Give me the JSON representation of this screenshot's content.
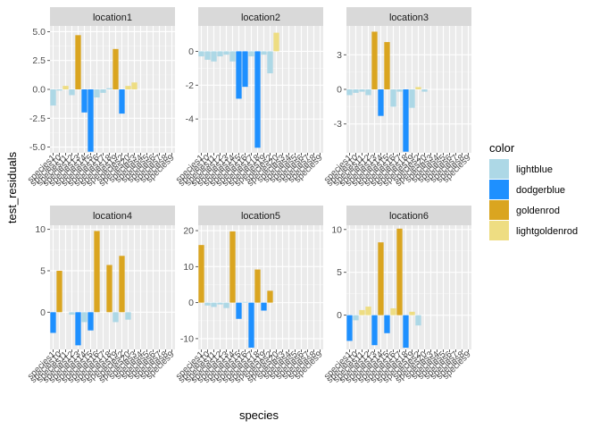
{
  "chart_data": {
    "type": "bar",
    "facet_by": "location",
    "xlabel": "species",
    "ylabel": "test_residuals",
    "categories": [
      "species1",
      "species10",
      "species11",
      "species12",
      "species13",
      "species14",
      "species15",
      "species16",
      "species17",
      "species18",
      "species19",
      "species2",
      "species20",
      "species3",
      "species4",
      "species5",
      "species6",
      "species7",
      "species8",
      "species9"
    ],
    "legend": {
      "title": "color",
      "position": "right",
      "entries": [
        {
          "label": "lightblue",
          "color": "#ADD8E6"
        },
        {
          "label": "dodgerblue",
          "color": "#1E90FF"
        },
        {
          "label": "goldenrod",
          "color": "#DAA520"
        },
        {
          "label": "lightgoldenrod",
          "color": "#EEDD82"
        }
      ]
    },
    "grid": true,
    "panel_background": "#EBEBEB",
    "strip_background": "#D9D9D9",
    "panels": [
      {
        "title": "location1",
        "ylim": [
          -5.5,
          5.5
        ],
        "yticks": [
          -5.0,
          -2.5,
          0.0,
          2.5,
          5.0
        ],
        "ytick_labels": [
          "-5.0",
          "-2.5",
          "0.0",
          "2.5",
          "5.0"
        ],
        "values": [
          -1.4,
          -0.1,
          0.3,
          -0.5,
          4.7,
          -2.0,
          -5.4,
          -0.7,
          -0.3,
          0.1,
          3.5,
          -2.1,
          0.3,
          0.6,
          0,
          0,
          0,
          0,
          0,
          0
        ],
        "colors": [
          "lightblue",
          "lightblue",
          "lightgoldenrod",
          "lightblue",
          "goldenrod",
          "dodgerblue",
          "dodgerblue",
          "lightblue",
          "lightblue",
          "lightblue",
          "goldenrod",
          "dodgerblue",
          "lightgoldenrod",
          "lightgoldenrod",
          "lightblue",
          "lightblue",
          "lightblue",
          "lightblue",
          "lightblue",
          "lightblue"
        ]
      },
      {
        "title": "location2",
        "ylim": [
          -6.0,
          1.5
        ],
        "yticks": [
          -4,
          -2,
          0
        ],
        "ytick_labels": [
          "-4",
          "-2",
          "0"
        ],
        "values": [
          -0.3,
          -0.5,
          -0.6,
          -0.3,
          -0.2,
          -0.6,
          -2.8,
          -2.1,
          -0.3,
          -5.7,
          -0.2,
          -1.3,
          1.1,
          0,
          0,
          0,
          0,
          0,
          0,
          0
        ],
        "colors": [
          "lightblue",
          "lightblue",
          "lightblue",
          "lightblue",
          "lightblue",
          "lightblue",
          "dodgerblue",
          "dodgerblue",
          "lightblue",
          "dodgerblue",
          "lightblue",
          "lightblue",
          "lightgoldenrod",
          "lightblue",
          "lightblue",
          "lightblue",
          "lightblue",
          "lightblue",
          "lightblue",
          "lightblue"
        ]
      },
      {
        "title": "location3",
        "ylim": [
          -5.5,
          5.5
        ],
        "yticks": [
          -3,
          0,
          3
        ],
        "ytick_labels": [
          "-3",
          "0",
          "3"
        ],
        "values": [
          -0.5,
          -0.3,
          -0.2,
          -0.5,
          5.0,
          -2.3,
          4.1,
          -1.5,
          -0.2,
          -5.4,
          -1.6,
          0.2,
          -0.2,
          0,
          0,
          0,
          0,
          0,
          0,
          0
        ],
        "colors": [
          "lightblue",
          "lightblue",
          "lightblue",
          "lightblue",
          "goldenrod",
          "dodgerblue",
          "goldenrod",
          "lightblue",
          "lightblue",
          "dodgerblue",
          "lightblue",
          "lightgoldenrod",
          "lightblue",
          "lightblue",
          "lightblue",
          "lightblue",
          "lightblue",
          "lightblue",
          "lightblue",
          "lightblue"
        ]
      },
      {
        "title": "location4",
        "ylim": [
          -4.5,
          10.5
        ],
        "yticks": [
          0,
          5,
          10
        ],
        "ytick_labels": [
          "0",
          "5",
          "10"
        ],
        "values": [
          -2.5,
          5.0,
          0,
          -0.3,
          -4.0,
          -1.2,
          -2.2,
          9.8,
          0,
          5.7,
          -1.2,
          6.8,
          -0.9,
          0,
          0,
          0,
          0,
          0,
          0,
          0
        ],
        "colors": [
          "dodgerblue",
          "goldenrod",
          "lightblue",
          "lightblue",
          "dodgerblue",
          "lightblue",
          "dodgerblue",
          "goldenrod",
          "lightblue",
          "goldenrod",
          "lightblue",
          "goldenrod",
          "lightblue",
          "lightblue",
          "lightblue",
          "lightblue",
          "lightblue",
          "lightblue",
          "lightblue",
          "lightblue"
        ]
      },
      {
        "title": "location5",
        "ylim": [
          -13.0,
          21.5
        ],
        "yticks": [
          -10,
          0,
          10,
          20
        ],
        "ytick_labels": [
          "-10",
          "0",
          "10",
          "20"
        ],
        "values": [
          16.0,
          -0.8,
          -1.2,
          -0.5,
          -1.5,
          19.8,
          -4.5,
          0.2,
          -12.5,
          9.2,
          -2.2,
          3.3,
          0,
          0,
          0,
          0,
          0,
          0,
          0,
          0
        ],
        "colors": [
          "goldenrod",
          "lightblue",
          "lightblue",
          "lightblue",
          "lightblue",
          "goldenrod",
          "dodgerblue",
          "lightblue",
          "dodgerblue",
          "goldenrod",
          "dodgerblue",
          "goldenrod",
          "lightblue",
          "lightblue",
          "lightblue",
          "lightblue",
          "lightblue",
          "lightblue",
          "lightblue",
          "lightblue"
        ]
      },
      {
        "title": "location6",
        "ylim": [
          -4.0,
          10.5
        ],
        "yticks": [
          0,
          5,
          10
        ],
        "ytick_labels": [
          "0",
          "5",
          "10"
        ],
        "values": [
          -3.0,
          -0.6,
          0.6,
          1.0,
          -3.5,
          8.5,
          -2.1,
          0.8,
          10.1,
          -3.8,
          0.4,
          -1.2,
          0,
          0,
          0,
          0,
          0,
          0,
          0,
          0
        ],
        "colors": [
          "dodgerblue",
          "lightblue",
          "lightgoldenrod",
          "lightgoldenrod",
          "dodgerblue",
          "goldenrod",
          "dodgerblue",
          "lightgoldenrod",
          "goldenrod",
          "dodgerblue",
          "lightgoldenrod",
          "lightblue",
          "lightblue",
          "lightblue",
          "lightblue",
          "lightblue",
          "lightblue",
          "lightblue",
          "lightblue",
          "lightblue"
        ]
      }
    ]
  }
}
